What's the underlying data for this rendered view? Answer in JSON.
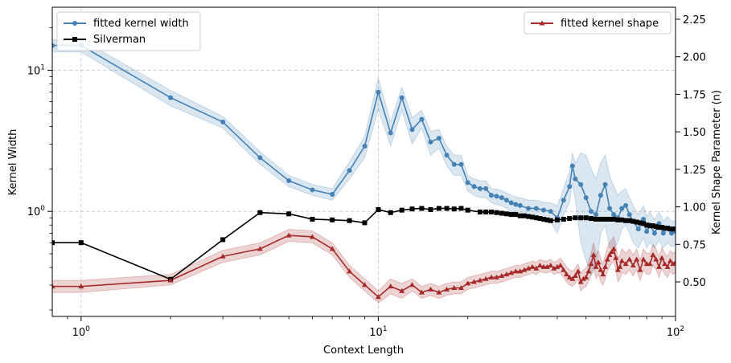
{
  "chart_data": {
    "type": "line",
    "xlabel": "Context Length",
    "ylabel": "Kernel Width",
    "ylabel_right": "Kernel Shape Parameter (n)",
    "x_scale": "log",
    "y_scale": "log",
    "xlim": [
      0.8,
      100
    ],
    "ylim": [
      0.18,
      28
    ],
    "ylim_right": [
      0.27,
      2.33
    ],
    "grid": true,
    "legend_left_position": "upper left",
    "legend_right_position": "upper right",
    "x_ticks": [
      {
        "value": 1,
        "base": "10",
        "exp": "0"
      },
      {
        "value": 10,
        "base": "10",
        "exp": "1"
      },
      {
        "value": 100,
        "base": "10",
        "exp": "2"
      }
    ],
    "y_ticks": [
      {
        "value": 1,
        "base": "10",
        "exp": "0"
      },
      {
        "value": 10,
        "base": "10",
        "exp": "1"
      }
    ],
    "y_right_ticks": [
      "0.50",
      "0.75",
      "1.00",
      "1.25",
      "1.50",
      "1.75",
      "2.00",
      "2.25"
    ],
    "series": [
      {
        "name": "fitted kernel width",
        "axis": "left",
        "color": "#4682b4",
        "band_color": "#4682b4",
        "marker": "circle",
        "x": [
          0.8,
          1,
          2,
          3,
          4,
          5,
          6,
          7,
          8,
          9,
          10,
          11,
          12,
          13,
          14,
          15,
          16,
          17,
          18,
          19,
          20,
          21,
          22,
          23,
          24,
          25,
          26,
          27,
          28,
          29,
          30,
          32,
          34,
          36,
          38,
          40,
          42,
          44,
          45,
          46,
          48,
          50,
          52,
          54,
          56,
          58,
          60,
          62,
          64,
          66,
          68,
          70,
          72,
          75,
          78,
          80,
          82,
          85,
          88,
          91,
          94,
          97,
          100
        ],
        "y": [
          15,
          15,
          6.4,
          4.3,
          2.4,
          1.65,
          1.42,
          1.32,
          1.95,
          2.9,
          7.0,
          3.6,
          6.4,
          3.8,
          4.5,
          3.1,
          3.3,
          2.5,
          2.15,
          2.15,
          1.6,
          1.5,
          1.45,
          1.45,
          1.3,
          1.28,
          1.25,
          1.2,
          1.15,
          1.12,
          1.1,
          1.05,
          1.05,
          1.02,
          1.0,
          0.9,
          1.2,
          1.5,
          2.1,
          1.7,
          1.55,
          1.25,
          1.0,
          0.95,
          1.3,
          1.55,
          1.05,
          0.95,
          0.9,
          1.05,
          1.1,
          0.95,
          0.85,
          0.75,
          0.88,
          0.72,
          0.8,
          0.7,
          0.82,
          0.7,
          0.76,
          0.7,
          0.72
        ],
        "lower": [
          13.5,
          13.5,
          5.6,
          3.9,
          2.15,
          1.5,
          1.3,
          1.2,
          1.7,
          2.4,
          5.3,
          2.9,
          5.2,
          3.0,
          3.9,
          2.5,
          2.8,
          2.1,
          1.8,
          1.8,
          1.4,
          1.3,
          1.25,
          1.25,
          1.15,
          1.12,
          1.1,
          1.05,
          1.0,
          0.98,
          0.95,
          0.9,
          0.9,
          0.88,
          0.85,
          0.7,
          0.95,
          1.15,
          1.6,
          1.2,
          0.6,
          0.45,
          0.35,
          0.4,
          0.7,
          0.8,
          0.55,
          0.55,
          0.6,
          0.75,
          0.8,
          0.7,
          0.6,
          0.55,
          0.65,
          0.55,
          0.6,
          0.55,
          0.62,
          0.55,
          0.6,
          0.56,
          0.58
        ],
        "upper": [
          16.5,
          16.5,
          7.2,
          4.7,
          2.65,
          1.8,
          1.55,
          1.45,
          2.25,
          3.4,
          8.8,
          4.3,
          7.6,
          4.6,
          5.2,
          3.7,
          3.8,
          2.9,
          2.5,
          2.5,
          1.8,
          1.7,
          1.65,
          1.65,
          1.45,
          1.44,
          1.4,
          1.35,
          1.3,
          1.26,
          1.25,
          1.2,
          1.2,
          1.16,
          1.15,
          1.1,
          1.45,
          1.9,
          2.6,
          2.2,
          2.6,
          2.5,
          2.0,
          1.7,
          2.2,
          2.5,
          1.8,
          1.5,
          1.3,
          1.4,
          1.45,
          1.25,
          1.1,
          0.95,
          1.1,
          0.92,
          1.0,
          0.87,
          1.0,
          0.85,
          0.92,
          0.85,
          0.86
        ]
      },
      {
        "name": "Silverman",
        "axis": "left",
        "color": "#000000",
        "marker": "square",
        "x": [
          0.8,
          1,
          2,
          3,
          4,
          5,
          6,
          7,
          8,
          9,
          10,
          11,
          12,
          13,
          14,
          15,
          16,
          17,
          18,
          19,
          20,
          22,
          23,
          24,
          25,
          26,
          27,
          28,
          29,
          30,
          31,
          32,
          33,
          34,
          35,
          36,
          37,
          38,
          40,
          42,
          44,
          46,
          48,
          50,
          52,
          54,
          56,
          58,
          60,
          62,
          64,
          66,
          68,
          70,
          72,
          74,
          76,
          78,
          80,
          82,
          84,
          86,
          88,
          90,
          92,
          94,
          96,
          98,
          100
        ],
        "y": [
          0.6,
          0.6,
          0.33,
          0.63,
          0.98,
          0.96,
          0.88,
          0.87,
          0.86,
          0.83,
          1.03,
          0.98,
          1.02,
          1.04,
          1.05,
          1.03,
          1.05,
          1.05,
          1.04,
          1.05,
          1.02,
          0.99,
          0.99,
          0.99,
          0.98,
          0.97,
          0.96,
          0.95,
          0.95,
          0.93,
          0.93,
          0.92,
          0.91,
          0.9,
          0.89,
          0.88,
          0.87,
          0.86,
          0.87,
          0.88,
          0.89,
          0.9,
          0.9,
          0.9,
          0.89,
          0.88,
          0.88,
          0.88,
          0.88,
          0.88,
          0.87,
          0.87,
          0.86,
          0.86,
          0.85,
          0.84,
          0.83,
          0.82,
          0.8,
          0.79,
          0.79,
          0.78,
          0.77,
          0.77,
          0.76,
          0.76,
          0.75,
          0.75,
          0.75
        ]
      },
      {
        "name": "fitted kernel shape",
        "axis": "right",
        "color": "#a52a2a",
        "band_color": "#a52a2a",
        "marker": "triangle",
        "x": [
          0.8,
          1,
          2,
          3,
          4,
          5,
          6,
          7,
          8,
          9,
          10,
          11,
          12,
          13,
          14,
          15,
          16,
          17,
          18,
          19,
          20,
          21,
          22,
          23,
          24,
          25,
          26,
          27,
          28,
          29,
          30,
          31,
          32,
          33,
          34,
          35,
          36,
          37,
          38,
          39,
          40,
          41,
          42,
          43,
          44,
          45,
          46,
          47,
          48,
          49,
          50,
          51,
          52,
          53,
          54,
          55,
          56,
          57,
          58,
          59,
          60,
          61,
          62,
          63,
          64,
          65,
          66,
          68,
          70,
          72,
          74,
          76,
          78,
          80,
          82,
          84,
          86,
          88,
          90,
          92,
          94,
          96,
          98,
          100
        ],
        "y": [
          0.47,
          0.47,
          0.51,
          0.67,
          0.72,
          0.81,
          0.8,
          0.72,
          0.57,
          0.48,
          0.4,
          0.47,
          0.44,
          0.48,
          0.43,
          0.45,
          0.43,
          0.45,
          0.46,
          0.46,
          0.49,
          0.5,
          0.51,
          0.52,
          0.53,
          0.53,
          0.54,
          0.55,
          0.56,
          0.57,
          0.57,
          0.58,
          0.59,
          0.6,
          0.59,
          0.61,
          0.6,
          0.6,
          0.61,
          0.59,
          0.6,
          0.61,
          0.58,
          0.55,
          0.53,
          0.52,
          0.54,
          0.57,
          0.5,
          0.52,
          0.53,
          0.57,
          0.62,
          0.68,
          0.6,
          0.63,
          0.58,
          0.55,
          0.6,
          0.65,
          0.68,
          0.7,
          0.72,
          0.66,
          0.58,
          0.6,
          0.64,
          0.62,
          0.65,
          0.61,
          0.65,
          0.58,
          0.65,
          0.62,
          0.62,
          0.68,
          0.65,
          0.6,
          0.66,
          0.62,
          0.6,
          0.64,
          0.62,
          0.63
        ],
        "lower": [
          0.43,
          0.43,
          0.48,
          0.63,
          0.68,
          0.77,
          0.76,
          0.68,
          0.53,
          0.44,
          0.36,
          0.42,
          0.39,
          0.44,
          0.39,
          0.41,
          0.39,
          0.41,
          0.42,
          0.42,
          0.45,
          0.46,
          0.47,
          0.48,
          0.49,
          0.49,
          0.5,
          0.51,
          0.52,
          0.53,
          0.53,
          0.54,
          0.55,
          0.56,
          0.55,
          0.57,
          0.56,
          0.56,
          0.57,
          0.55,
          0.56,
          0.56,
          0.53,
          0.5,
          0.48,
          0.47,
          0.49,
          0.52,
          0.44,
          0.46,
          0.47,
          0.5,
          0.55,
          0.6,
          0.52,
          0.55,
          0.5,
          0.48,
          0.52,
          0.57,
          0.6,
          0.62,
          0.64,
          0.58,
          0.5,
          0.52,
          0.56,
          0.55,
          0.58,
          0.54,
          0.58,
          0.51,
          0.58,
          0.55,
          0.55,
          0.61,
          0.58,
          0.53,
          0.59,
          0.55,
          0.53,
          0.57,
          0.55,
          0.56
        ],
        "upper": [
          0.51,
          0.51,
          0.55,
          0.71,
          0.76,
          0.85,
          0.84,
          0.76,
          0.61,
          0.52,
          0.44,
          0.52,
          0.49,
          0.52,
          0.47,
          0.49,
          0.47,
          0.49,
          0.5,
          0.5,
          0.53,
          0.54,
          0.55,
          0.56,
          0.57,
          0.57,
          0.58,
          0.59,
          0.6,
          0.61,
          0.61,
          0.62,
          0.63,
          0.64,
          0.63,
          0.65,
          0.64,
          0.64,
          0.65,
          0.63,
          0.64,
          0.66,
          0.63,
          0.6,
          0.58,
          0.57,
          0.59,
          0.62,
          0.56,
          0.58,
          0.59,
          0.64,
          0.69,
          0.76,
          0.68,
          0.71,
          0.66,
          0.62,
          0.68,
          0.73,
          0.76,
          0.78,
          0.8,
          0.74,
          0.66,
          0.68,
          0.72,
          0.69,
          0.72,
          0.68,
          0.72,
          0.65,
          0.72,
          0.69,
          0.69,
          0.75,
          0.72,
          0.67,
          0.73,
          0.69,
          0.67,
          0.71,
          0.69,
          0.7
        ]
      }
    ]
  }
}
